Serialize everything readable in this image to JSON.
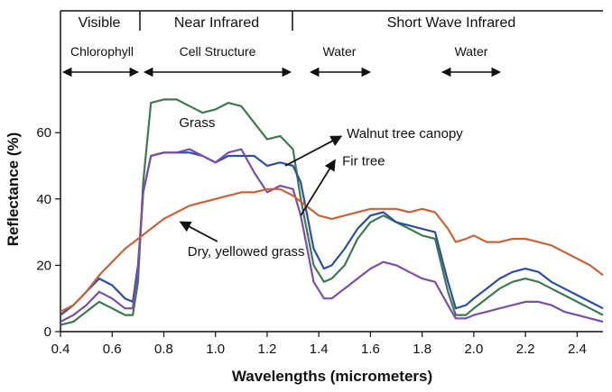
{
  "chart_data": {
    "type": "line",
    "xlabel": "Wavelengths (micrometers)",
    "ylabel": "Reflectance (%)",
    "xlim": [
      0.4,
      2.5
    ],
    "ylim": [
      0,
      75
    ],
    "x_ticks": [
      "0.4",
      "0.6",
      "0.8",
      "1.0",
      "1.2",
      "1.4",
      "1.6",
      "1.8",
      "2.0",
      "2.2",
      "2.4"
    ],
    "y_ticks": [
      "0",
      "20",
      "40",
      "60"
    ],
    "grid": false,
    "bands": [
      {
        "label": "Visible",
        "x_start": 0.4,
        "x_end": 0.7
      },
      {
        "label": "Near Infrared",
        "x_start": 0.7,
        "x_end": 1.3
      },
      {
        "label": "Short Wave Infrared",
        "x_start": 1.3,
        "x_end": 2.5
      }
    ],
    "band_annotations": [
      {
        "label": "Chlorophyll",
        "x_start": 0.4,
        "x_end": 0.7
      },
      {
        "label": "Cell Structure",
        "x_start": 0.7,
        "x_end": 1.3
      },
      {
        "label": "Water",
        "x_start": 1.35,
        "x_end": 1.6
      },
      {
        "label": "Water",
        "x_start": 1.85,
        "x_end": 2.1
      }
    ],
    "series": [
      {
        "name": "Grass",
        "color": "#3d7a4f",
        "points": [
          [
            0.4,
            2
          ],
          [
            0.45,
            3
          ],
          [
            0.5,
            6
          ],
          [
            0.55,
            9
          ],
          [
            0.6,
            7
          ],
          [
            0.65,
            5
          ],
          [
            0.68,
            5
          ],
          [
            0.7,
            15
          ],
          [
            0.72,
            45
          ],
          [
            0.75,
            69
          ],
          [
            0.8,
            70
          ],
          [
            0.85,
            70
          ],
          [
            0.9,
            68
          ],
          [
            0.95,
            66
          ],
          [
            1.0,
            67
          ],
          [
            1.05,
            69
          ],
          [
            1.1,
            68
          ],
          [
            1.15,
            63
          ],
          [
            1.2,
            58
          ],
          [
            1.25,
            59
          ],
          [
            1.3,
            55
          ],
          [
            1.33,
            40
          ],
          [
            1.38,
            20
          ],
          [
            1.42,
            15
          ],
          [
            1.45,
            16
          ],
          [
            1.5,
            20
          ],
          [
            1.55,
            28
          ],
          [
            1.6,
            33
          ],
          [
            1.65,
            35
          ],
          [
            1.7,
            33
          ],
          [
            1.75,
            31
          ],
          [
            1.8,
            29
          ],
          [
            1.85,
            28
          ],
          [
            1.9,
            12
          ],
          [
            1.93,
            5
          ],
          [
            1.97,
            5
          ],
          [
            2.0,
            7
          ],
          [
            2.05,
            10
          ],
          [
            2.1,
            13
          ],
          [
            2.15,
            15
          ],
          [
            2.2,
            16
          ],
          [
            2.25,
            15
          ],
          [
            2.3,
            13
          ],
          [
            2.35,
            11
          ],
          [
            2.4,
            9
          ],
          [
            2.45,
            7
          ],
          [
            2.5,
            5
          ]
        ]
      },
      {
        "name": "Walnut tree canopy",
        "color": "#2d4fa3",
        "points": [
          [
            0.4,
            5
          ],
          [
            0.45,
            8
          ],
          [
            0.5,
            12
          ],
          [
            0.55,
            16
          ],
          [
            0.6,
            14
          ],
          [
            0.65,
            10
          ],
          [
            0.68,
            9
          ],
          [
            0.7,
            20
          ],
          [
            0.72,
            42
          ],
          [
            0.75,
            53
          ],
          [
            0.8,
            54
          ],
          [
            0.85,
            54
          ],
          [
            0.9,
            54
          ],
          [
            0.95,
            53
          ],
          [
            1.0,
            51
          ],
          [
            1.05,
            53
          ],
          [
            1.1,
            53
          ],
          [
            1.15,
            53
          ],
          [
            1.2,
            50
          ],
          [
            1.25,
            51
          ],
          [
            1.3,
            50
          ],
          [
            1.33,
            45
          ],
          [
            1.38,
            25
          ],
          [
            1.42,
            19
          ],
          [
            1.45,
            20
          ],
          [
            1.5,
            25
          ],
          [
            1.55,
            31
          ],
          [
            1.6,
            35
          ],
          [
            1.65,
            36
          ],
          [
            1.7,
            33
          ],
          [
            1.75,
            32
          ],
          [
            1.8,
            31
          ],
          [
            1.85,
            30
          ],
          [
            1.9,
            15
          ],
          [
            1.93,
            7
          ],
          [
            1.97,
            8
          ],
          [
            2.0,
            10
          ],
          [
            2.05,
            13
          ],
          [
            2.1,
            16
          ],
          [
            2.15,
            18
          ],
          [
            2.2,
            19
          ],
          [
            2.25,
            18
          ],
          [
            2.3,
            15
          ],
          [
            2.35,
            13
          ],
          [
            2.4,
            11
          ],
          [
            2.45,
            9
          ],
          [
            2.5,
            7
          ]
        ]
      },
      {
        "name": "Fir tree",
        "color": "#7a4fa8",
        "points": [
          [
            0.4,
            3
          ],
          [
            0.45,
            5
          ],
          [
            0.5,
            8
          ],
          [
            0.55,
            12
          ],
          [
            0.6,
            10
          ],
          [
            0.65,
            7
          ],
          [
            0.68,
            7
          ],
          [
            0.7,
            18
          ],
          [
            0.72,
            42
          ],
          [
            0.75,
            53
          ],
          [
            0.8,
            54
          ],
          [
            0.85,
            54
          ],
          [
            0.9,
            55
          ],
          [
            0.95,
            53
          ],
          [
            1.0,
            51
          ],
          [
            1.05,
            54
          ],
          [
            1.1,
            55
          ],
          [
            1.15,
            48
          ],
          [
            1.2,
            42
          ],
          [
            1.25,
            44
          ],
          [
            1.3,
            43
          ],
          [
            1.33,
            35
          ],
          [
            1.38,
            15
          ],
          [
            1.42,
            10
          ],
          [
            1.45,
            10
          ],
          [
            1.5,
            13
          ],
          [
            1.55,
            16
          ],
          [
            1.6,
            19
          ],
          [
            1.65,
            21
          ],
          [
            1.7,
            20
          ],
          [
            1.75,
            18
          ],
          [
            1.8,
            16
          ],
          [
            1.85,
            15
          ],
          [
            1.9,
            8
          ],
          [
            1.93,
            4
          ],
          [
            1.97,
            4
          ],
          [
            2.0,
            5
          ],
          [
            2.05,
            6
          ],
          [
            2.1,
            7
          ],
          [
            2.15,
            8
          ],
          [
            2.2,
            9
          ],
          [
            2.25,
            9
          ],
          [
            2.3,
            8
          ],
          [
            2.35,
            6
          ],
          [
            2.4,
            5
          ],
          [
            2.45,
            4
          ],
          [
            2.5,
            3
          ]
        ]
      },
      {
        "name": "Dry, yellowed grass",
        "color": "#c8643a",
        "points": [
          [
            0.4,
            6
          ],
          [
            0.45,
            8
          ],
          [
            0.5,
            12
          ],
          [
            0.55,
            17
          ],
          [
            0.6,
            21
          ],
          [
            0.65,
            25
          ],
          [
            0.7,
            28
          ],
          [
            0.75,
            31
          ],
          [
            0.8,
            34
          ],
          [
            0.85,
            36
          ],
          [
            0.9,
            38
          ],
          [
            0.95,
            39
          ],
          [
            1.0,
            40
          ],
          [
            1.05,
            41
          ],
          [
            1.1,
            42
          ],
          [
            1.15,
            42
          ],
          [
            1.2,
            43
          ],
          [
            1.25,
            43
          ],
          [
            1.3,
            41
          ],
          [
            1.35,
            38
          ],
          [
            1.4,
            35
          ],
          [
            1.45,
            34
          ],
          [
            1.5,
            35
          ],
          [
            1.55,
            36
          ],
          [
            1.6,
            37
          ],
          [
            1.65,
            37
          ],
          [
            1.7,
            37
          ],
          [
            1.75,
            36
          ],
          [
            1.8,
            37
          ],
          [
            1.85,
            36
          ],
          [
            1.9,
            31
          ],
          [
            1.93,
            27
          ],
          [
            1.97,
            28
          ],
          [
            2.0,
            29
          ],
          [
            2.05,
            27
          ],
          [
            2.1,
            27
          ],
          [
            2.15,
            28
          ],
          [
            2.2,
            28
          ],
          [
            2.25,
            27
          ],
          [
            2.3,
            26
          ],
          [
            2.35,
            24
          ],
          [
            2.4,
            22
          ],
          [
            2.45,
            20
          ],
          [
            2.5,
            17
          ]
        ]
      }
    ],
    "annotations": [
      {
        "text": "Grass",
        "anchor_x": 0.88,
        "anchor_y": 63
      },
      {
        "text": "Walnut tree canopy",
        "anchor_x": 1.27,
        "anchor_y": 50,
        "label_x": 1.55,
        "label_y": 60
      },
      {
        "text": "Fir tree",
        "anchor_x": 1.33,
        "anchor_y": 35,
        "label_x": 1.55,
        "label_y": 49
      },
      {
        "text": "Dry, yellowed grass",
        "anchor_x": 0.78,
        "anchor_y": 32,
        "label_x": 0.85,
        "label_y": 25
      }
    ]
  }
}
